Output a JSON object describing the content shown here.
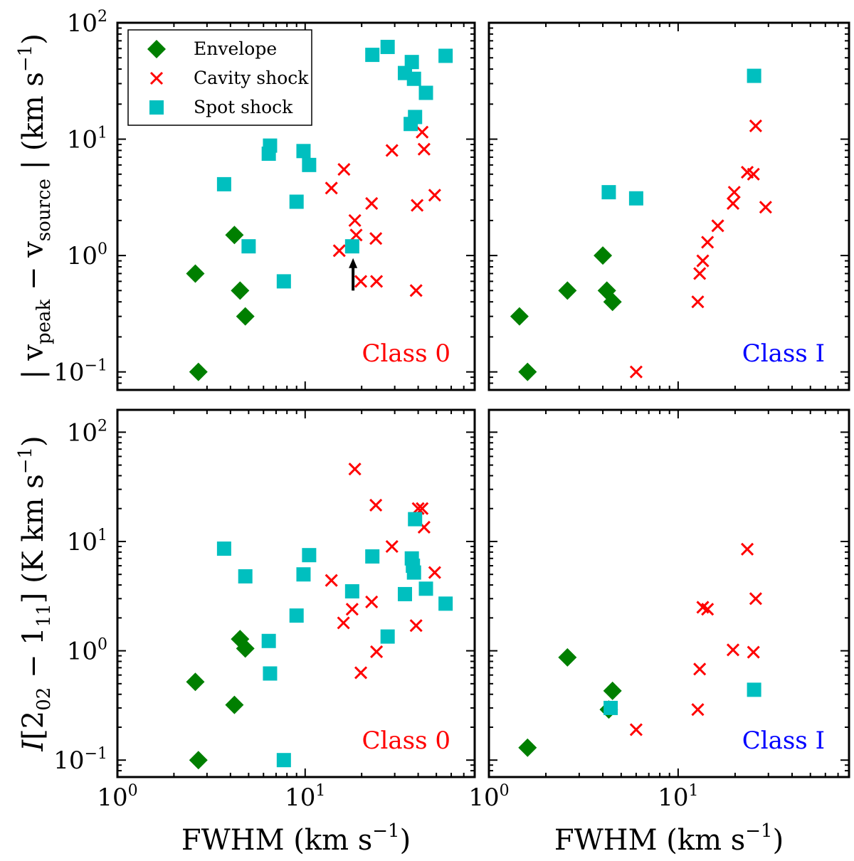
{
  "chart_data": {
    "type": "scatter",
    "xlabel": "FWHM (km s−1)",
    "ylabel_top": "| vpeak − vsource | (km s−1)",
    "ylabel_bottom": "I[202 − 111] (K km s−1)",
    "xscale": "log",
    "yscale": "log",
    "xlim": [
      1,
      80
    ],
    "ylim_top": [
      0.07,
      100
    ],
    "ylim_bottom": [
      0.07,
      160
    ],
    "legend": {
      "position": "top-left",
      "entries": [
        {
          "name": "Envelope",
          "marker": "diamond",
          "color": "#007F00"
        },
        {
          "name": "Cavity shock",
          "marker": "x",
          "color": "#FF0000"
        },
        {
          "name": "Spot shock",
          "marker": "square",
          "color": "#00BFBF"
        }
      ]
    },
    "class_colors": {
      "class0": "#FF0000",
      "classI": "#0000FF"
    },
    "panels": [
      {
        "id": "top-left",
        "class_label": "Class 0",
        "series": [
          {
            "name": "Envelope",
            "points": [
              [
                2.6,
                0.7
              ],
              [
                2.7,
                0.1
              ],
              [
                4.2,
                1.5
              ],
              [
                4.5,
                0.5
              ],
              [
                4.8,
                0.3
              ]
            ]
          },
          {
            "name": "Cavity shock",
            "points": [
              [
                13.8,
                3.8
              ],
              [
                15.2,
                1.1
              ],
              [
                16.1,
                5.5
              ],
              [
                18.4,
                2.0
              ],
              [
                18.7,
                1.5
              ],
              [
                19.8,
                0.6
              ],
              [
                22.6,
                2.8
              ],
              [
                23.8,
                1.4
              ],
              [
                24.0,
                0.6
              ],
              [
                29.0,
                8.0
              ],
              [
                39.0,
                0.5
              ],
              [
                39.5,
                2.7
              ],
              [
                42.0,
                11.5
              ],
              [
                43.0,
                8.2
              ],
              [
                49.0,
                3.3
              ]
            ]
          },
          {
            "name": "Spot shock",
            "points": [
              [
                3.7,
                4.1
              ],
              [
                5.0,
                1.2
              ],
              [
                6.4,
                7.5
              ],
              [
                6.5,
                8.8
              ],
              [
                7.7,
                0.6
              ],
              [
                9.0,
                2.9
              ],
              [
                9.8,
                7.9
              ],
              [
                10.5,
                6.0
              ],
              [
                17.8,
                1.2
              ],
              [
                22.8,
                53
              ],
              [
                27.5,
                62
              ],
              [
                34.0,
                37
              ],
              [
                36.5,
                13.5
              ],
              [
                37.0,
                46
              ],
              [
                38.0,
                33
              ],
              [
                38.5,
                15.5
              ],
              [
                44.0,
                25
              ],
              [
                56.0,
                52
              ]
            ]
          }
        ],
        "annotation": {
          "type": "arrow-up",
          "at": [
            18,
            0.5
          ],
          "to": [
            18,
            0.95
          ]
        }
      },
      {
        "id": "top-right",
        "class_label": "Class I",
        "series": [
          {
            "name": "Envelope",
            "points": [
              [
                1.45,
                0.3
              ],
              [
                1.6,
                0.1
              ],
              [
                2.6,
                0.5
              ],
              [
                4.0,
                1.0
              ],
              [
                4.2,
                0.5
              ],
              [
                4.5,
                0.4
              ]
            ]
          },
          {
            "name": "Cavity shock",
            "points": [
              [
                6.0,
                0.1
              ],
              [
                12.7,
                0.4
              ],
              [
                13.0,
                0.7
              ],
              [
                13.5,
                0.9
              ],
              [
                14.3,
                1.3
              ],
              [
                16.2,
                1.8
              ],
              [
                19.5,
                2.8
              ],
              [
                19.8,
                3.5
              ],
              [
                23.2,
                5.2
              ],
              [
                25.0,
                5.0
              ],
              [
                25.7,
                13.0
              ],
              [
                29.0,
                2.6
              ]
            ]
          },
          {
            "name": "Spot shock",
            "points": [
              [
                4.3,
                3.5
              ],
              [
                6.0,
                3.1
              ],
              [
                25.2,
                35
              ]
            ]
          }
        ]
      },
      {
        "id": "bottom-left",
        "class_label": "Class 0",
        "series": [
          {
            "name": "Envelope",
            "points": [
              [
                2.6,
                0.52
              ],
              [
                2.7,
                0.1
              ],
              [
                4.2,
                0.32
              ],
              [
                4.5,
                1.28
              ],
              [
                4.8,
                1.05
              ]
            ]
          },
          {
            "name": "Cavity shock",
            "points": [
              [
                13.8,
                4.4
              ],
              [
                16.0,
                1.8
              ],
              [
                17.8,
                2.4
              ],
              [
                18.4,
                46
              ],
              [
                19.8,
                0.63
              ],
              [
                22.6,
                2.8
              ],
              [
                23.8,
                21.5
              ],
              [
                24.0,
                0.98
              ],
              [
                29.0,
                9.0
              ],
              [
                39.0,
                1.7
              ],
              [
                40.0,
                20
              ],
              [
                42.0,
                20
              ],
              [
                43.0,
                13.5
              ],
              [
                49.0,
                5.2
              ]
            ]
          },
          {
            "name": "Spot shock",
            "points": [
              [
                3.7,
                8.6
              ],
              [
                4.8,
                4.8
              ],
              [
                6.4,
                1.23
              ],
              [
                6.5,
                0.62
              ],
              [
                7.7,
                0.1
              ],
              [
                9.0,
                2.1
              ],
              [
                9.8,
                5.0
              ],
              [
                10.5,
                7.5
              ],
              [
                17.8,
                3.5
              ],
              [
                22.8,
                7.3
              ],
              [
                27.5,
                1.35
              ],
              [
                34.0,
                3.3
              ],
              [
                37.0,
                7.0
              ],
              [
                37.5,
                6.0
              ],
              [
                38.0,
                5.2
              ],
              [
                38.5,
                16
              ],
              [
                44.0,
                3.7
              ],
              [
                56.0,
                2.7
              ]
            ]
          }
        ]
      },
      {
        "id": "bottom-right",
        "class_label": "Class I",
        "series": [
          {
            "name": "Envelope",
            "points": [
              [
                1.6,
                0.13
              ],
              [
                2.6,
                0.87
              ],
              [
                4.3,
                0.29
              ],
              [
                4.5,
                0.43
              ]
            ]
          },
          {
            "name": "Cavity shock",
            "points": [
              [
                6.0,
                0.19
              ],
              [
                12.7,
                0.29
              ],
              [
                13.0,
                0.68
              ],
              [
                13.5,
                2.5
              ],
              [
                14.3,
                2.4
              ],
              [
                19.5,
                1.02
              ],
              [
                23.2,
                8.5
              ],
              [
                25.0,
                0.97
              ],
              [
                25.7,
                3.0
              ]
            ]
          },
          {
            "name": "Spot shock",
            "points": [
              [
                4.4,
                0.3
              ],
              [
                25.2,
                0.44
              ]
            ]
          }
        ]
      }
    ]
  }
}
